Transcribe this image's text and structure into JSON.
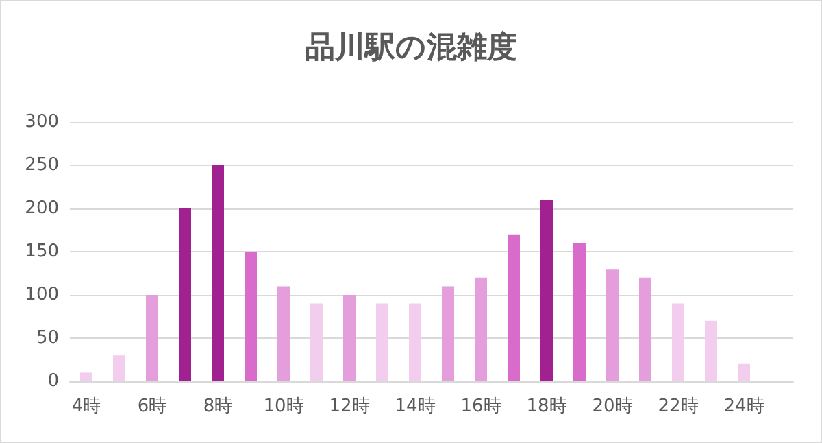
{
  "chart_data": {
    "type": "bar",
    "title": "品川駅の混雑度",
    "categories": [
      "4時",
      null,
      "6時",
      null,
      "8時",
      null,
      "10時",
      null,
      "12時",
      null,
      "14時",
      null,
      "16時",
      null,
      "18時",
      null,
      "20時",
      null,
      "22時",
      null,
      "24時",
      null
    ],
    "values": [
      10,
      30,
      100,
      200,
      250,
      150,
      110,
      90,
      100,
      90,
      90,
      110,
      120,
      170,
      210,
      160,
      130,
      120,
      90,
      70,
      20,
      null
    ],
    "colors": [
      "#f2cdee",
      "#f2cdee",
      "#e49edb",
      "#a0218f",
      "#a0218f",
      "#d96ccb",
      "#e49edb",
      "#f2cdee",
      "#e49edb",
      "#f2cdee",
      "#f2cdee",
      "#e49edb",
      "#e49edb",
      "#d96ccb",
      "#a0218f",
      "#d96ccb",
      "#e49edb",
      "#e49edb",
      "#f2cdee",
      "#f2cdee",
      "#f2cdee",
      "#f2cdee"
    ],
    "ylim": [
      0,
      300
    ],
    "yticks": [
      0,
      50,
      100,
      150,
      200,
      250,
      300
    ],
    "grid": "y"
  }
}
